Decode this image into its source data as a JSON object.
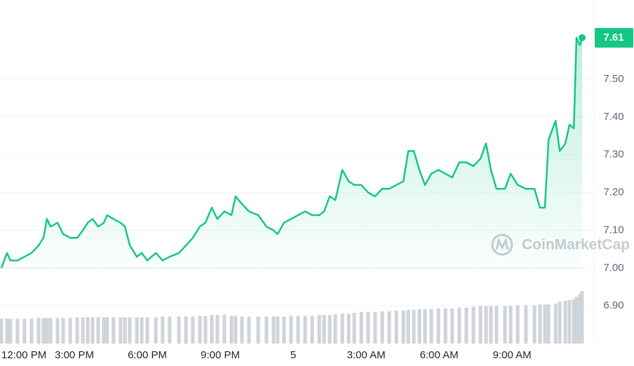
{
  "chart_data": {
    "type": "line",
    "x": [
      0,
      0.23,
      0.37,
      0.66,
      0.95,
      1.24,
      1.53,
      1.73,
      1.87,
      2.02,
      2.31,
      2.54,
      2.83,
      3.12,
      3.35,
      3.55,
      3.75,
      3.98,
      4.21,
      4.35,
      4.61,
      4.9,
      5.08,
      5.28,
      5.57,
      5.77,
      6.0,
      6.35,
      6.63,
      6.92,
      7.3,
      7.59,
      7.87,
      8.16,
      8.39,
      8.65,
      8.88,
      9.17,
      9.46,
      9.63,
      9.89,
      10.18,
      10.56,
      10.9,
      11.19,
      11.36,
      11.62,
      11.91,
      12.2,
      12.49,
      12.78,
      13.07,
      13.27,
      13.5,
      13.73,
      14.02,
      14.28,
      14.51,
      14.8,
      15.08,
      15.37,
      15.66,
      15.95,
      16.24,
      16.53,
      16.73,
      16.96,
      17.19,
      17.42,
      17.68,
      17.97,
      18.26,
      18.54,
      18.83,
      19.12,
      19.41,
      19.7,
      19.93,
      20.13,
      20.36,
      20.71,
      20.94,
      21.23,
      21.57,
      21.92,
      22.15,
      22.35,
      22.5,
      22.79,
      22.96,
      23.19,
      23.36,
      23.54,
      23.65,
      23.79,
      23.88
    ],
    "y": [
      7.0,
      7.04,
      7.02,
      7.02,
      7.03,
      7.04,
      7.06,
      7.08,
      7.13,
      7.11,
      7.12,
      7.09,
      7.08,
      7.08,
      7.1,
      7.12,
      7.13,
      7.11,
      7.12,
      7.14,
      7.13,
      7.12,
      7.11,
      7.06,
      7.03,
      7.04,
      7.02,
      7.04,
      7.02,
      7.03,
      7.04,
      7.06,
      7.08,
      7.11,
      7.12,
      7.16,
      7.13,
      7.15,
      7.14,
      7.19,
      7.17,
      7.15,
      7.14,
      7.11,
      7.1,
      7.09,
      7.12,
      7.13,
      7.14,
      7.15,
      7.14,
      7.14,
      7.15,
      7.19,
      7.18,
      7.26,
      7.23,
      7.22,
      7.22,
      7.2,
      7.19,
      7.21,
      7.21,
      7.22,
      7.23,
      7.31,
      7.31,
      7.26,
      7.22,
      7.25,
      7.26,
      7.25,
      7.24,
      7.28,
      7.28,
      7.27,
      7.29,
      7.33,
      7.26,
      7.21,
      7.21,
      7.25,
      7.22,
      7.21,
      7.21,
      7.16,
      7.16,
      7.34,
      7.39,
      7.31,
      7.33,
      7.38,
      7.37,
      7.61,
      7.59,
      7.61
    ],
    "volume": [
      33,
      33,
      33,
      33,
      33,
      33,
      34,
      34,
      34,
      34,
      34,
      34,
      34,
      35,
      35,
      35,
      35,
      35,
      35,
      35,
      35,
      35,
      35,
      35,
      35,
      35,
      35,
      35,
      36,
      36,
      36,
      36,
      36,
      37,
      37,
      38,
      38,
      38,
      37,
      37,
      36,
      36,
      36,
      36,
      36,
      36,
      36,
      37,
      37,
      37,
      37,
      38,
      38,
      38,
      39,
      40,
      40,
      41,
      42,
      42,
      42,
      43,
      43,
      44,
      44,
      45,
      45,
      46,
      46,
      46,
      47,
      47,
      47,
      48,
      48,
      49,
      50,
      50,
      50,
      50,
      50,
      50,
      51,
      51,
      51,
      52,
      52,
      52,
      53,
      56,
      57,
      58,
      59,
      62,
      66,
      70
    ],
    "color": "#16c784",
    "volume_color": "#cfd3da",
    "xlim": [
      0,
      23.88
    ],
    "xticks": [
      {
        "value": 0,
        "label": "12:00 PM"
      },
      {
        "value": 3,
        "label": "3:00 PM"
      },
      {
        "value": 6,
        "label": "6:00 PM"
      },
      {
        "value": 9,
        "label": "9:00 PM"
      },
      {
        "value": 12,
        "label": "5"
      },
      {
        "value": 15,
        "label": "3:00 AM"
      },
      {
        "value": 18,
        "label": "6:00 AM"
      },
      {
        "value": 21,
        "label": "9:00 AM"
      }
    ],
    "ylim": [
      6.8,
      7.71
    ],
    "yticks": [
      {
        "value": 6.9,
        "label": "6.90"
      },
      {
        "value": 7,
        "label": "7.00"
      },
      {
        "value": 7.1,
        "label": "7.10"
      },
      {
        "value": 7.2,
        "label": "7.20"
      },
      {
        "value": 7.3,
        "label": "7.30"
      },
      {
        "value": 7.4,
        "label": "7.40"
      },
      {
        "value": 7.5,
        "label": "7.50"
      }
    ],
    "reference_line": 7,
    "grid": true,
    "watermark": "CoinMarketCap"
  }
}
